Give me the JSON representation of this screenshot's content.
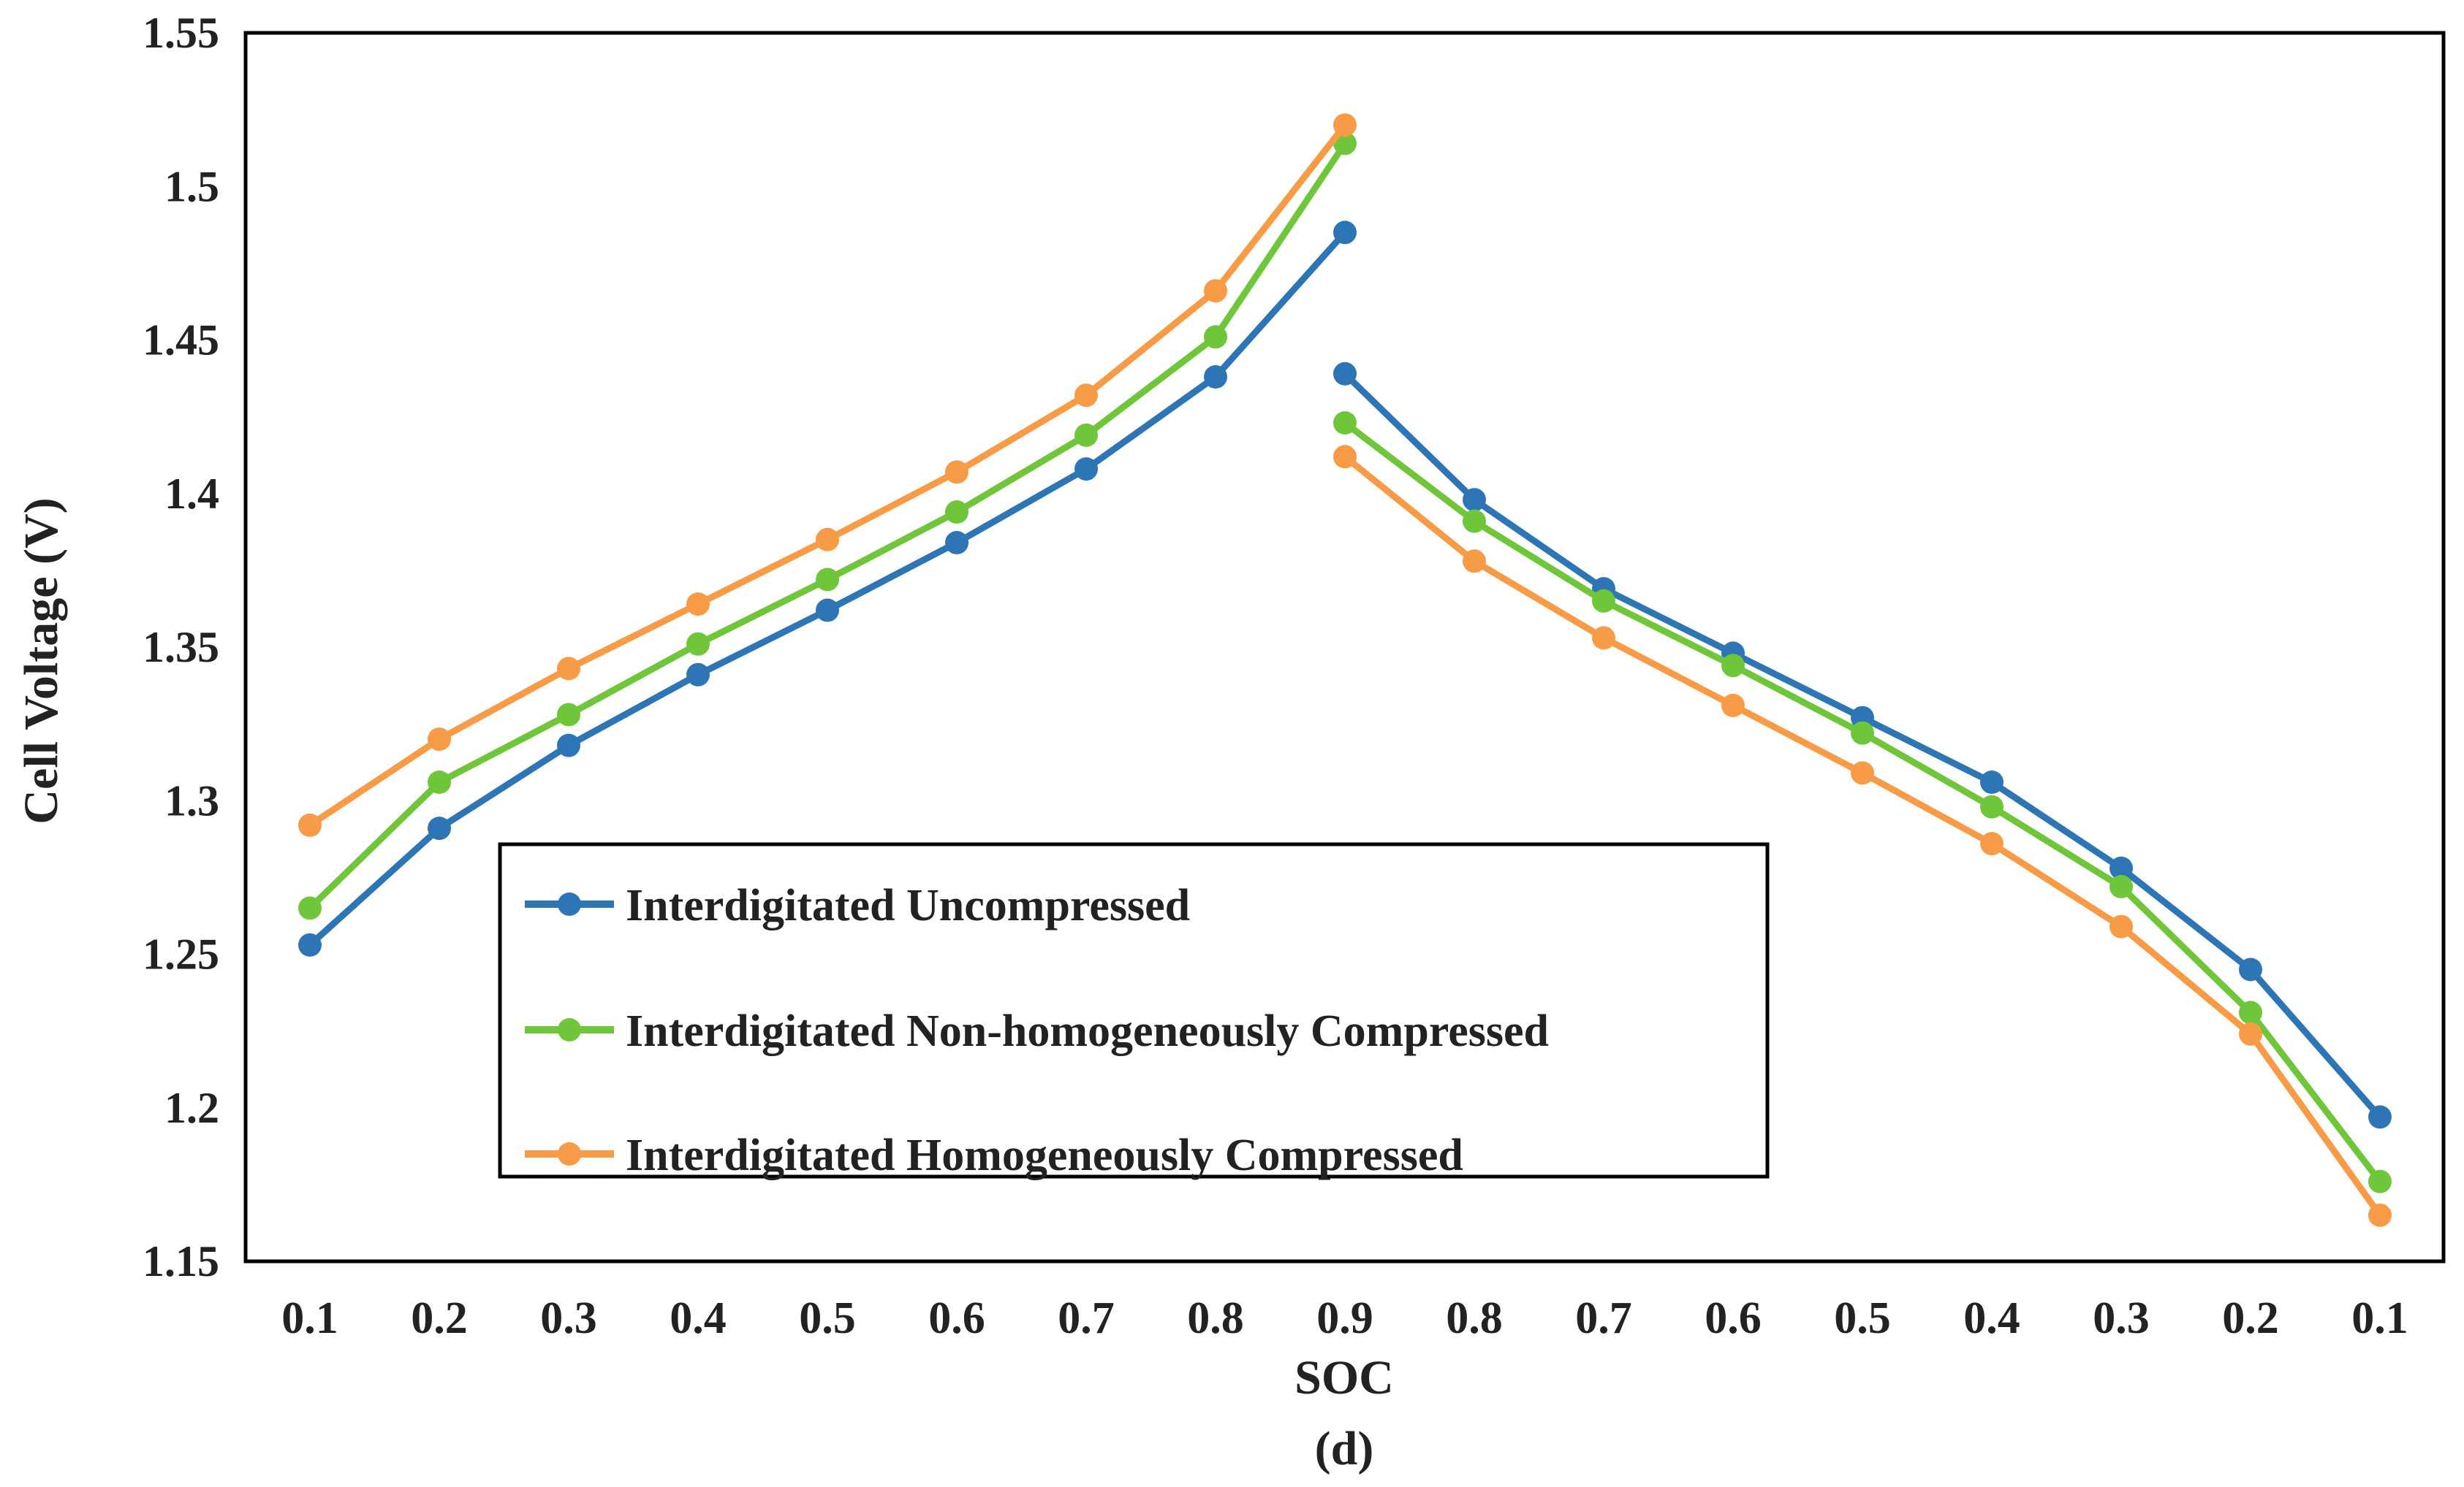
{
  "chart_data": {
    "type": "line",
    "title": "",
    "caption": "(d)",
    "xlabel": "SOC",
    "ylabel": "Cell Voltage (V)",
    "ylim": [
      1.15,
      1.55
    ],
    "y_ticks": [
      "1.15",
      "1.2",
      "1.25",
      "1.3",
      "1.35",
      "1.4",
      "1.45",
      "1.5",
      "1.55"
    ],
    "categories": [
      "0.1",
      "0.2",
      "0.3",
      "0.4",
      "0.5",
      "0.6",
      "0.7",
      "0.8",
      "0.9",
      "0.8",
      "0.7",
      "0.6",
      "0.5",
      "0.4",
      "0.3",
      "0.2",
      "0.1"
    ],
    "segments": [
      [
        0,
        8
      ],
      [
        8,
        16
      ]
    ],
    "grid": false,
    "legend_position": "lower-left-center",
    "series": [
      {
        "name": "Interdigitated Uncompressed",
        "color": "#2e75b6",
        "charge": [
          1.253,
          1.291,
          1.318,
          1.341,
          1.362,
          1.384,
          1.408,
          1.438,
          1.485
        ],
        "discharge": [
          1.439,
          1.398,
          1.369,
          1.348,
          1.327,
          1.306,
          1.278,
          1.245,
          1.197
        ]
      },
      {
        "name": "Interdigitated Non-homogeneously Compressed",
        "color": "#70c63b",
        "charge": [
          1.265,
          1.306,
          1.328,
          1.351,
          1.372,
          1.394,
          1.419,
          1.451,
          1.514
        ],
        "discharge": [
          1.423,
          1.391,
          1.365,
          1.344,
          1.322,
          1.298,
          1.272,
          1.231,
          1.176
        ]
      },
      {
        "name": "Interdigitated Homogeneously Compressed",
        "color": "#f79b47",
        "charge": [
          1.292,
          1.32,
          1.343,
          1.364,
          1.385,
          1.407,
          1.432,
          1.466,
          1.52
        ],
        "discharge": [
          1.412,
          1.378,
          1.353,
          1.331,
          1.309,
          1.286,
          1.259,
          1.224,
          1.165
        ]
      }
    ]
  }
}
